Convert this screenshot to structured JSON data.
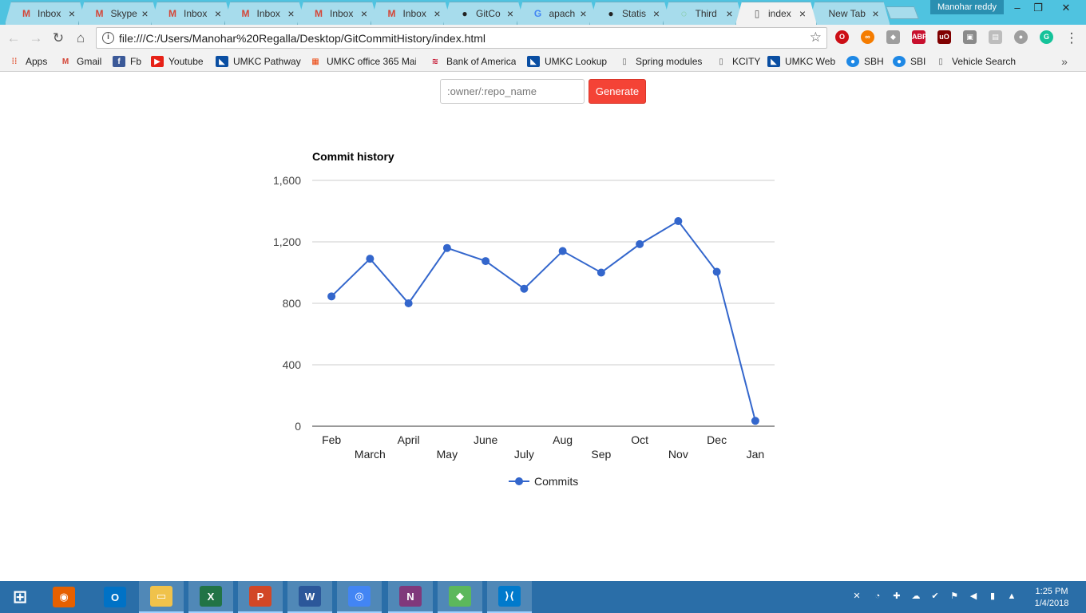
{
  "browser": {
    "tabs": [
      {
        "title": "Inbox",
        "icon": "gmail-icon",
        "color": "#d44638",
        "active": false
      },
      {
        "title": "Skype",
        "icon": "gmail-icon",
        "color": "#d44638",
        "active": false
      },
      {
        "title": "Inbox",
        "icon": "gmail-icon",
        "color": "#d44638",
        "active": false
      },
      {
        "title": "Inbox",
        "icon": "gmail-icon",
        "color": "#d44638",
        "active": false
      },
      {
        "title": "Inbox",
        "icon": "gmail-icon",
        "color": "#d44638",
        "active": false
      },
      {
        "title": "Inbox",
        "icon": "gmail-icon",
        "color": "#d44638",
        "active": false
      },
      {
        "title": "GitCo",
        "icon": "github-icon",
        "color": "#222222",
        "active": false
      },
      {
        "title": "apach",
        "icon": "google-icon",
        "color": "#4285f4",
        "active": false
      },
      {
        "title": "Statis",
        "icon": "github-icon",
        "color": "#222222",
        "active": false
      },
      {
        "title": "Third",
        "icon": "loading-icon",
        "color": "#6abf69",
        "active": false
      },
      {
        "title": "index",
        "icon": "document-icon",
        "color": "#555555",
        "active": true
      },
      {
        "title": "New Tab",
        "icon": "",
        "color": "",
        "active": false
      }
    ],
    "profile_name": "Manohar reddy",
    "url": "file:///C:/Users/Manohar%20Regalla/Desktop/GitCommitHistory/index.html"
  },
  "bookmarks": [
    {
      "label": "Apps",
      "icon": "apps-grid-icon",
      "color": "#e25a3b"
    },
    {
      "label": "Gmail",
      "icon": "gmail-icon",
      "color": "#d44638"
    },
    {
      "label": "Fb",
      "icon": "facebook-icon",
      "color": "#3b5998"
    },
    {
      "label": "Youtube",
      "icon": "youtube-icon",
      "color": "#e62117"
    },
    {
      "label": "UMKC Pathway",
      "icon": "umkc-icon",
      "color": "#0a4ea2"
    },
    {
      "label": "UMKC office 365 Mai",
      "icon": "office365-icon",
      "color": "#eb3c00"
    },
    {
      "label": "Bank of America",
      "icon": "bank-of-america-icon",
      "color": "#c4122f"
    },
    {
      "label": "UMKC Lookup",
      "icon": "umkc-icon",
      "color": "#0a4ea2"
    },
    {
      "label": "Spring modules",
      "icon": "document-icon",
      "color": "#666666"
    },
    {
      "label": "KCITY",
      "icon": "document-icon",
      "color": "#666666"
    },
    {
      "label": "UMKC Web",
      "icon": "umkc-icon",
      "color": "#0a4ea2"
    },
    {
      "label": "SBH",
      "icon": "sbh-icon",
      "color": "#1e88e5"
    },
    {
      "label": "SBI",
      "icon": "sbi-icon",
      "color": "#1e88e5"
    },
    {
      "label": "Vehicle Search",
      "icon": "document-icon",
      "color": "#666666"
    }
  ],
  "form": {
    "placeholder": ":owner/:repo_name",
    "value": "",
    "generate_label": "Generate",
    "button_color": "#f44336"
  },
  "chart_data": {
    "type": "line",
    "title": "Commit history",
    "categories": [
      "Feb",
      "March",
      "April",
      "May",
      "June",
      "July",
      "Aug",
      "Sep",
      "Oct",
      "Nov",
      "Dec",
      "Jan"
    ],
    "series": [
      {
        "name": "Commits",
        "color": "#3366cc",
        "values": [
          845,
          1090,
          800,
          1160,
          1075,
          895,
          1140,
          1000,
          1185,
          1335,
          1005,
          35
        ]
      }
    ],
    "ylim": [
      0,
      1600
    ],
    "yticks": [
      "0",
      "400",
      "800",
      "1,200",
      "1,600"
    ],
    "grid": true,
    "legend_position": "bottom"
  },
  "taskbar": {
    "apps": [
      {
        "name": "start",
        "icon": "windows-start-icon",
        "color": "#2a6ea8",
        "open": false
      },
      {
        "name": "firefox",
        "icon": "firefox-icon",
        "color": "#e66000",
        "open": false
      },
      {
        "name": "outlook",
        "icon": "outlook-icon",
        "color": "#0072c6",
        "open": false
      },
      {
        "name": "file explorer",
        "icon": "folder-icon",
        "color": "#f0c24b",
        "open": true
      },
      {
        "name": "excel",
        "icon": "excel-icon",
        "color": "#217346",
        "open": true
      },
      {
        "name": "powerpoint",
        "icon": "powerpoint-icon",
        "color": "#d24726",
        "open": true
      },
      {
        "name": "word",
        "icon": "word-icon",
        "color": "#2b579a",
        "open": true
      },
      {
        "name": "chrome",
        "icon": "chrome-icon",
        "color": "#4285f4",
        "open": true
      },
      {
        "name": "onenote",
        "icon": "onenote-icon",
        "color": "#80397b",
        "open": true
      },
      {
        "name": "git",
        "icon": "git-icon",
        "color": "#5cb85c",
        "open": true
      },
      {
        "name": "vscode",
        "icon": "vscode-icon",
        "color": "#007acc",
        "open": true
      }
    ],
    "time": "1:25 PM",
    "date": "1/4/2018"
  }
}
